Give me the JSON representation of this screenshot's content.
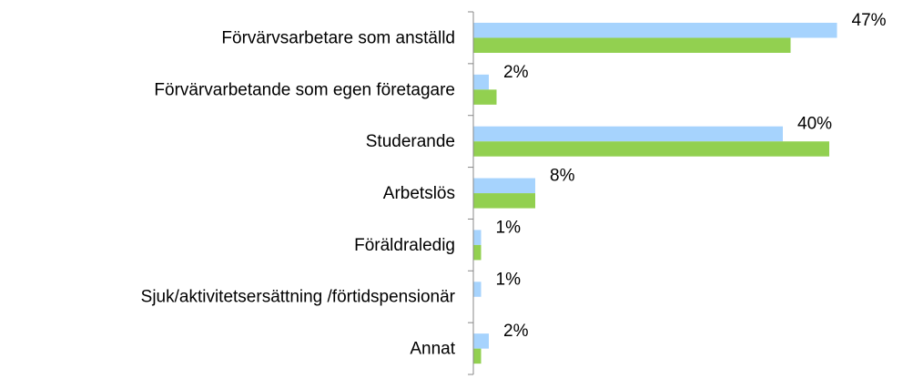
{
  "chart_data": {
    "type": "bar",
    "orientation": "horizontal",
    "categories": [
      "Förvärvsarbetare som anställd",
      "Förvärvarbetande som egen företagare",
      "Studerande",
      "Arbetslös",
      "Föräldraledig",
      "Sjuk/aktivitetsersättning /förtidspensionär",
      "Annat"
    ],
    "series": [
      {
        "color": "#a6d3fd",
        "values": [
          47,
          2,
          40,
          8,
          1,
          1,
          2
        ],
        "value_labels": [
          "47%",
          "2%",
          "40%",
          "8%",
          "1%",
          "1%",
          "2%"
        ]
      },
      {
        "color": "#92d050",
        "values": [
          41,
          3,
          46,
          8,
          1,
          0,
          1
        ]
      }
    ],
    "xlim": [
      0,
      50
    ]
  }
}
